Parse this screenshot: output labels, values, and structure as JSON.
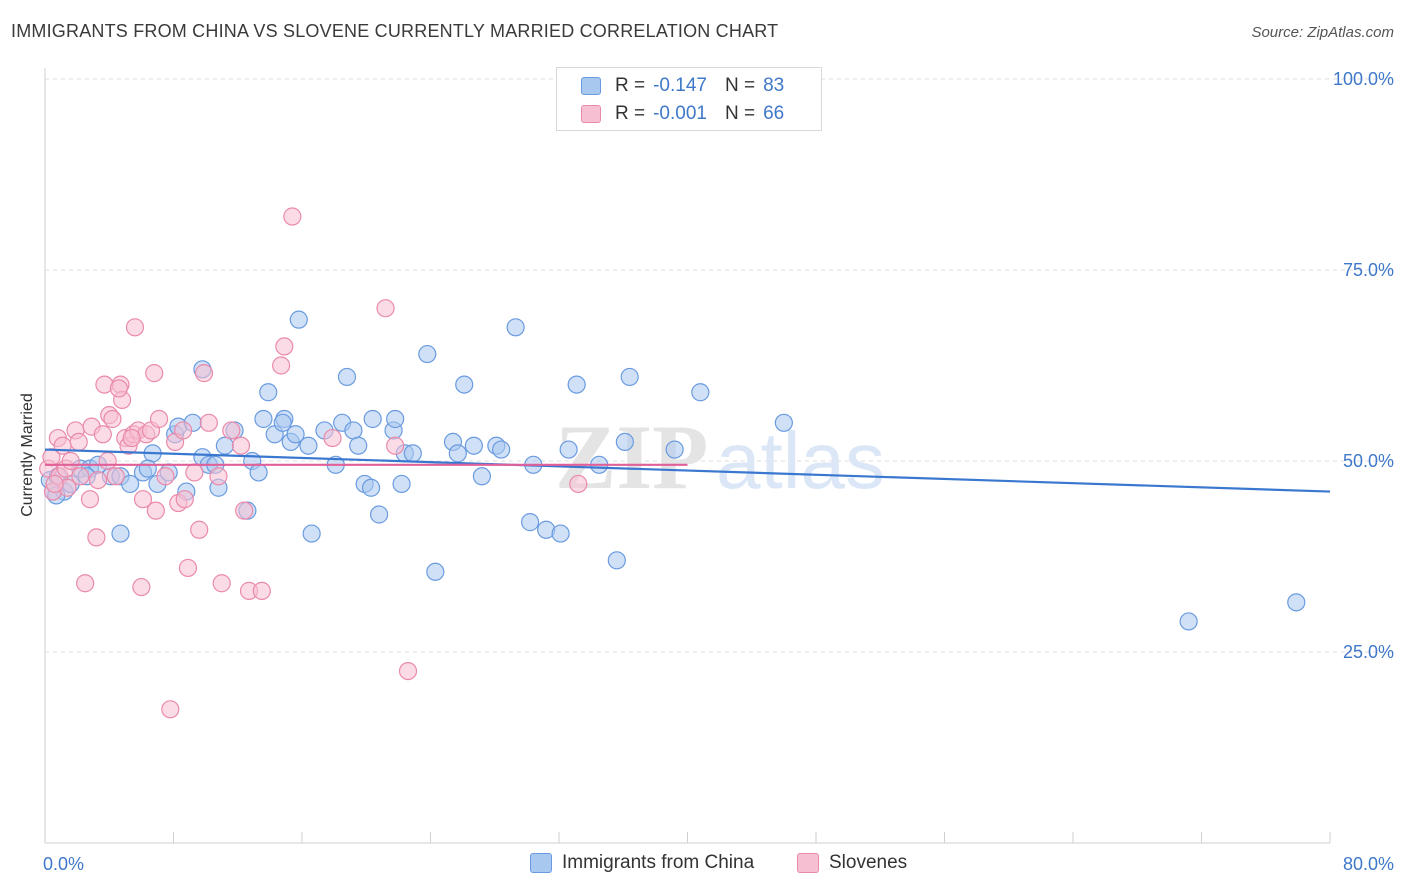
{
  "header": {
    "title": "IMMIGRANTS FROM CHINA VS SLOVENE CURRENTLY MARRIED CORRELATION CHART",
    "source": "Source: ZipAtlas.com"
  },
  "watermark": {
    "zip": "ZIP",
    "atlas": "atlas"
  },
  "legend": {
    "rows": [
      {
        "r_label": "R =",
        "r_value": "-0.147",
        "n_label": "N =",
        "n_value": "83",
        "color": "#a9c8f0",
        "border": "#6a9be0"
      },
      {
        "r_label": "R =",
        "r_value": "-0.001",
        "n_label": "N =",
        "n_value": "66",
        "color": "#f7c0d2",
        "border": "#ea8aab"
      }
    ]
  },
  "bottom_legend": {
    "items": [
      {
        "label": "Immigrants from China",
        "color": "#a9c8f0",
        "border": "#6a9be0"
      },
      {
        "label": "Slovenes",
        "color": "#f7c0d2",
        "border": "#ea8aab"
      }
    ]
  },
  "chart_data": {
    "type": "scatter",
    "title": "IMMIGRANTS FROM CHINA VS SLOVENE CURRENTLY MARRIED CORRELATION CHART",
    "xlabel": "",
    "ylabel": "Currently Married",
    "xlim": [
      0,
      80
    ],
    "ylim": [
      0,
      100
    ],
    "x_tick_labels": [
      "0.0%",
      "80.0%"
    ],
    "y_ticks": [
      25,
      50,
      75,
      100
    ],
    "y_tick_labels": [
      "25.0%",
      "50.0%",
      "75.0%",
      "100.0%"
    ],
    "grid": true,
    "series": [
      {
        "name": "Immigrants from China",
        "color": "#6a9be0",
        "fill": "#a9c8f0",
        "trend": {
          "x0": 0,
          "y0": 51.5,
          "x1": 80,
          "y1": 46.0,
          "color": "#3a78d0"
        },
        "points": [
          [
            0.3,
            47.5
          ],
          [
            0.5,
            46
          ],
          [
            0.8,
            48
          ],
          [
            1.2,
            46
          ],
          [
            1.6,
            47
          ],
          [
            2.2,
            49
          ],
          [
            2.8,
            49
          ],
          [
            3.3,
            49.5
          ],
          [
            4.1,
            48
          ],
          [
            4.7,
            48
          ],
          [
            5.3,
            47
          ],
          [
            6.1,
            48.5
          ],
          [
            6.7,
            51
          ],
          [
            7.0,
            47
          ],
          [
            7.7,
            48.5
          ],
          [
            8.1,
            53.5
          ],
          [
            8.3,
            54.5
          ],
          [
            8.8,
            46
          ],
          [
            9.2,
            55
          ],
          [
            9.8,
            50.5
          ],
          [
            10.2,
            49.5
          ],
          [
            10.6,
            49.5
          ],
          [
            10.8,
            46.5
          ],
          [
            11.2,
            52
          ],
          [
            11.8,
            54
          ],
          [
            12.6,
            43.5
          ],
          [
            12.9,
            50
          ],
          [
            13.3,
            48.5
          ],
          [
            13.6,
            55.5
          ],
          [
            13.9,
            59
          ],
          [
            14.3,
            53.5
          ],
          [
            14.9,
            55.5
          ],
          [
            15.3,
            52.5
          ],
          [
            15.6,
            53.5
          ],
          [
            15.8,
            68.5
          ],
          [
            16.4,
            52
          ],
          [
            16.6,
            40.5
          ],
          [
            17.4,
            54
          ],
          [
            18.1,
            49.5
          ],
          [
            18.5,
            55
          ],
          [
            18.8,
            61
          ],
          [
            19.2,
            54
          ],
          [
            19.5,
            52
          ],
          [
            19.9,
            47
          ],
          [
            20.3,
            46.5
          ],
          [
            20.8,
            43
          ],
          [
            21.7,
            54
          ],
          [
            21.8,
            55.5
          ],
          [
            22.2,
            47
          ],
          [
            22.4,
            51
          ],
          [
            22.9,
            51
          ],
          [
            23.8,
            64
          ],
          [
            24.3,
            35.5
          ],
          [
            25.4,
            52.5
          ],
          [
            25.7,
            51
          ],
          [
            26.1,
            60
          ],
          [
            26.7,
            52
          ],
          [
            27.2,
            48
          ],
          [
            28.1,
            52
          ],
          [
            28.4,
            51.5
          ],
          [
            29.3,
            67.5
          ],
          [
            30.2,
            42
          ],
          [
            30.4,
            49.5
          ],
          [
            31.2,
            41
          ],
          [
            32.1,
            40.5
          ],
          [
            32.6,
            51.5
          ],
          [
            33.1,
            60
          ],
          [
            34.5,
            49.5
          ],
          [
            35.6,
            37
          ],
          [
            36.1,
            52.5
          ],
          [
            36.4,
            61
          ],
          [
            39.2,
            51.5
          ],
          [
            40.8,
            59
          ],
          [
            46.0,
            55
          ],
          [
            71.2,
            29
          ],
          [
            77.9,
            31.5
          ],
          [
            9.8,
            62
          ],
          [
            14.8,
            55
          ],
          [
            20.4,
            55.5
          ],
          [
            4.7,
            40.5
          ],
          [
            0.7,
            45.5
          ],
          [
            2.6,
            48
          ],
          [
            6.4,
            49
          ]
        ]
      },
      {
        "name": "Slovenes",
        "color": "#ea8aab",
        "fill": "#f7c0d2",
        "trend": {
          "x0": 0,
          "y0": 49.5,
          "x1": 40,
          "y1": 49.5,
          "color": "#e0609a"
        },
        "points": [
          [
            0.2,
            49
          ],
          [
            0.4,
            50.5
          ],
          [
            0.5,
            46
          ],
          [
            0.8,
            53
          ],
          [
            0.9,
            48
          ],
          [
            1.1,
            52
          ],
          [
            1.3,
            49
          ],
          [
            1.6,
            50
          ],
          [
            1.9,
            54
          ],
          [
            2.2,
            48
          ],
          [
            2.5,
            34
          ],
          [
            2.8,
            45
          ],
          [
            2.9,
            54.5
          ],
          [
            3.2,
            40
          ],
          [
            3.3,
            47.5
          ],
          [
            3.6,
            53.5
          ],
          [
            3.9,
            50
          ],
          [
            4.0,
            56
          ],
          [
            4.2,
            55.5
          ],
          [
            4.4,
            48
          ],
          [
            4.7,
            60
          ],
          [
            4.8,
            58
          ],
          [
            5.0,
            53
          ],
          [
            5.2,
            52
          ],
          [
            5.5,
            53.5
          ],
          [
            5.6,
            67.5
          ],
          [
            5.8,
            54
          ],
          [
            6.0,
            33.5
          ],
          [
            6.1,
            45
          ],
          [
            6.3,
            53.5
          ],
          [
            6.6,
            54
          ],
          [
            6.8,
            61.5
          ],
          [
            6.9,
            43.5
          ],
          [
            7.1,
            55.5
          ],
          [
            7.5,
            48
          ],
          [
            7.8,
            17.5
          ],
          [
            8.1,
            52.5
          ],
          [
            8.3,
            44.5
          ],
          [
            8.6,
            54
          ],
          [
            8.7,
            45
          ],
          [
            8.9,
            36
          ],
          [
            9.3,
            48.5
          ],
          [
            9.6,
            41
          ],
          [
            9.9,
            61.5
          ],
          [
            10.2,
            55
          ],
          [
            10.8,
            48
          ],
          [
            11.0,
            34
          ],
          [
            11.6,
            54
          ],
          [
            12.2,
            52
          ],
          [
            12.4,
            43.5
          ],
          [
            12.7,
            33
          ],
          [
            13.5,
            33
          ],
          [
            14.7,
            62.5
          ],
          [
            14.9,
            65
          ],
          [
            15.4,
            82
          ],
          [
            17.9,
            53
          ],
          [
            21.2,
            70
          ],
          [
            21.8,
            52
          ],
          [
            22.6,
            22.5
          ],
          [
            33.2,
            47
          ],
          [
            5.4,
            53
          ],
          [
            3.7,
            60
          ],
          [
            1.4,
            46.5
          ],
          [
            2.1,
            52.5
          ],
          [
            4.6,
            59.5
          ],
          [
            0.6,
            47
          ]
        ]
      }
    ]
  }
}
